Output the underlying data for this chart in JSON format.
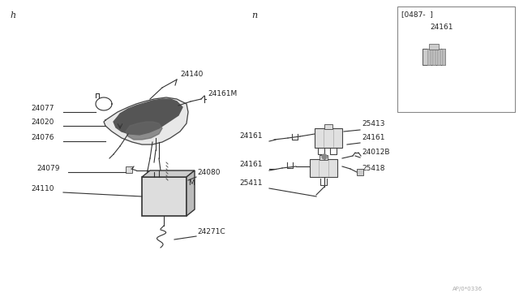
{
  "bg": "#ffffff",
  "fg": "#666666",
  "dark": "#222222",
  "watermark": "AP/0*0336",
  "inset_label": "[0487-  ]",
  "inset_part": "24161",
  "section_h": "h",
  "section_n": "n"
}
